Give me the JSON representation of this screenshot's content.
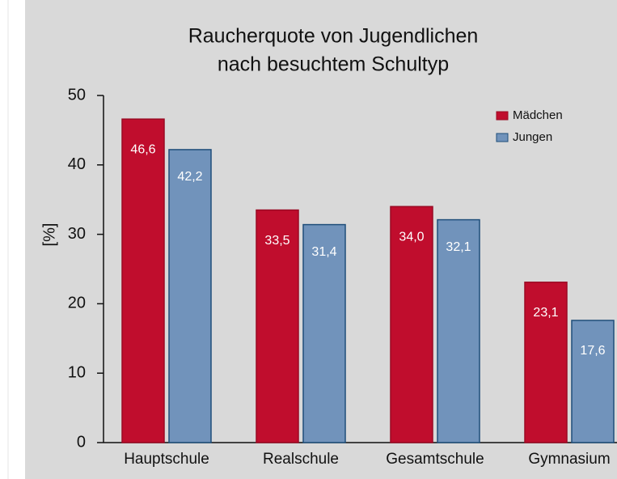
{
  "chart_data": {
    "type": "bar",
    "title": "Raucherquote von Jugendlichen",
    "subtitle": "nach besuchtem Schultyp",
    "y_label": "[%]",
    "categories": [
      "Hauptschule",
      "Realschule",
      "Gesamtschule",
      "Gymnasium"
    ],
    "series": [
      {
        "name": "Mädchen",
        "color": "#c00d2d",
        "values": [
          46.6,
          33.5,
          34.0,
          23.1
        ],
        "value_labels": [
          "46,6",
          "33,5",
          "34,0",
          "23,1"
        ]
      },
      {
        "name": "Jungen",
        "color": "#7193bb",
        "values": [
          42.2,
          31.4,
          32.1,
          17.6
        ],
        "value_labels": [
          "42,2",
          "31,4",
          "32,1",
          "17,6"
        ]
      }
    ],
    "ylim": [
      0,
      50
    ],
    "yticks": [
      0,
      10,
      20,
      30,
      40,
      50
    ],
    "grid": false,
    "legend": "upper right"
  }
}
